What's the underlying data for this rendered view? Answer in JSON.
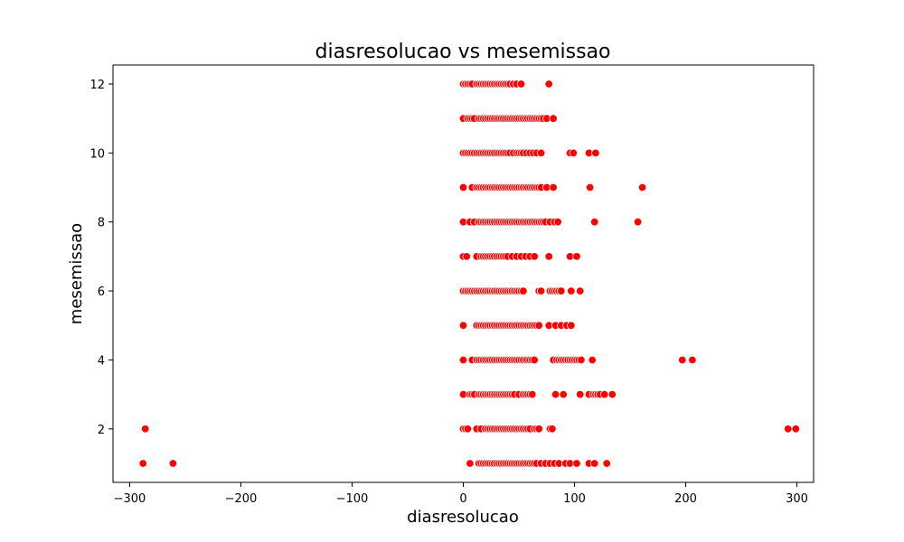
{
  "chart_data": {
    "type": "scatter",
    "title": "diasresolucao vs mesemissao",
    "xlabel": "diasresolucao",
    "ylabel": "mesemissao",
    "xlim": [
      -315,
      315
    ],
    "ylim": [
      0.45,
      12.55
    ],
    "xticks": [
      -300,
      -200,
      -100,
      0,
      100,
      200,
      300
    ],
    "yticks": [
      2,
      4,
      6,
      8,
      10,
      12
    ],
    "xtick_labels": [
      "−300",
      "−200",
      "−100",
      "0",
      "100",
      "200",
      "300"
    ],
    "ytick_labels": [
      "2",
      "4",
      "6",
      "8",
      "10",
      "12"
    ],
    "grid": false,
    "marker_color": "#ff0000",
    "marker_edge_color": "#ffffff",
    "series": [
      {
        "points": [
          {
            "y": 12,
            "x": [
              0,
              2,
              4,
              6,
              8,
              12,
              14,
              16,
              18,
              20,
              22,
              24,
              26,
              28,
              30,
              32,
              34,
              36,
              38,
              40,
              42,
              45,
              48,
              52,
              77
            ]
          },
          {
            "y": 11,
            "x": [
              0,
              4,
              6,
              8,
              10,
              14,
              16,
              18,
              20,
              22,
              24,
              26,
              28,
              30,
              32,
              34,
              36,
              38,
              40,
              42,
              44,
              46,
              48,
              50,
              52,
              54,
              56,
              58,
              60,
              62,
              64,
              66,
              68,
              70,
              72,
              75,
              81
            ]
          },
          {
            "y": 10,
            "x": [
              0,
              2,
              4,
              6,
              8,
              10,
              12,
              14,
              16,
              18,
              20,
              22,
              24,
              26,
              28,
              30,
              32,
              34,
              36,
              38,
              40,
              42,
              45,
              48,
              50,
              52,
              54,
              57,
              60,
              63,
              66,
              70,
              96,
              99,
              113,
              119
            ]
          },
          {
            "y": 9,
            "x": [
              0,
              8,
              12,
              14,
              16,
              18,
              20,
              22,
              24,
              26,
              28,
              30,
              32,
              34,
              36,
              38,
              40,
              42,
              44,
              46,
              48,
              50,
              52,
              54,
              56,
              58,
              60,
              62,
              64,
              66,
              68,
              70,
              75,
              81,
              114,
              161
            ]
          },
          {
            "y": 8,
            "x": [
              0,
              6,
              10,
              14,
              16,
              18,
              20,
              22,
              24,
              26,
              28,
              30,
              32,
              34,
              36,
              38,
              40,
              42,
              44,
              46,
              48,
              50,
              52,
              54,
              56,
              58,
              60,
              62,
              64,
              66,
              68,
              70,
              72,
              74,
              78,
              82,
              85,
              118,
              157
            ]
          },
          {
            "y": 7,
            "x": [
              0,
              3,
              12,
              16,
              18,
              20,
              22,
              24,
              26,
              28,
              30,
              32,
              34,
              36,
              38,
              40,
              44,
              48,
              52,
              56,
              60,
              64,
              77,
              96,
              102
            ]
          },
          {
            "y": 6,
            "x": [
              0,
              2,
              4,
              6,
              8,
              10,
              12,
              14,
              16,
              18,
              20,
              22,
              24,
              26,
              28,
              30,
              32,
              34,
              36,
              38,
              40,
              42,
              44,
              46,
              48,
              50,
              52,
              54,
              68,
              70,
              78,
              80,
              82,
              84,
              86,
              88,
              97,
              105
            ]
          },
          {
            "y": 5,
            "x": [
              0,
              12,
              14,
              16,
              18,
              20,
              22,
              24,
              26,
              28,
              30,
              32,
              34,
              36,
              38,
              40,
              42,
              44,
              46,
              48,
              50,
              52,
              54,
              56,
              58,
              60,
              62,
              64,
              66,
              68,
              77,
              83,
              88,
              93,
              97
            ]
          },
          {
            "y": 4,
            "x": [
              0,
              8,
              12,
              14,
              16,
              18,
              20,
              22,
              24,
              26,
              28,
              30,
              32,
              34,
              36,
              38,
              40,
              42,
              44,
              46,
              48,
              50,
              52,
              54,
              56,
              58,
              60,
              62,
              64,
              81,
              84,
              86,
              88,
              90,
              92,
              94,
              96,
              98,
              100,
              102,
              104,
              106,
              116,
              197,
              206
            ]
          },
          {
            "y": 3,
            "x": [
              0,
              6,
              8,
              10,
              14,
              16,
              18,
              20,
              22,
              24,
              26,
              28,
              30,
              32,
              34,
              36,
              38,
              40,
              42,
              44,
              46,
              50,
              54,
              56,
              58,
              60,
              62,
              83,
              90,
              105,
              113,
              117,
              119,
              121,
              123,
              127,
              134
            ]
          },
          {
            "y": 2,
            "x": [
              -286,
              0,
              2,
              4,
              12,
              16,
              20,
              22,
              24,
              26,
              28,
              30,
              32,
              34,
              36,
              38,
              40,
              42,
              44,
              46,
              48,
              50,
              52,
              54,
              56,
              58,
              60,
              64,
              66,
              68,
              78,
              80,
              292,
              299
            ]
          },
          {
            "y": 1,
            "x": [
              -288,
              -261,
              6,
              14,
              16,
              18,
              20,
              22,
              24,
              26,
              28,
              30,
              32,
              34,
              36,
              38,
              40,
              42,
              44,
              46,
              48,
              50,
              52,
              54,
              56,
              58,
              60,
              62,
              64,
              66,
              70,
              74,
              78,
              82,
              86,
              92,
              96,
              102,
              113,
              118,
              129
            ]
          }
        ]
      }
    ]
  }
}
